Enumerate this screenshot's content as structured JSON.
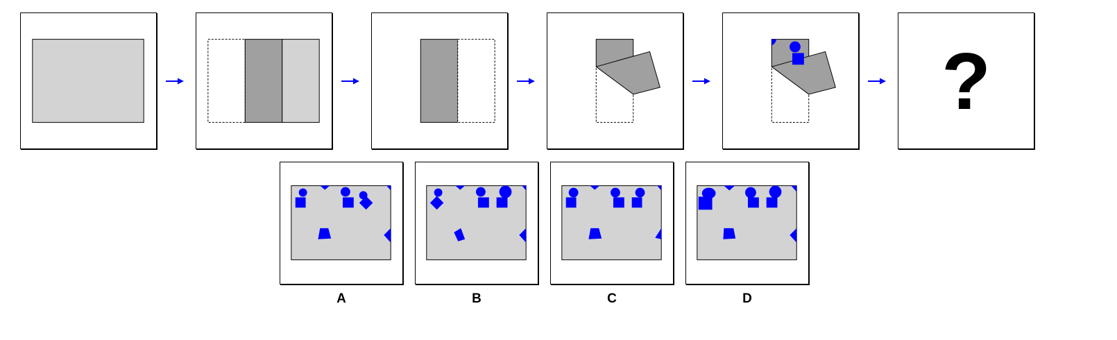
{
  "puzzle": {
    "question_mark": "?",
    "options": [
      {
        "label": "A"
      },
      {
        "label": "B"
      },
      {
        "label": "C"
      },
      {
        "label": "D"
      }
    ]
  },
  "colors": {
    "paper": "#d3d3d3",
    "folded": "#a0a0a0",
    "punch": "#0000ff",
    "arrow": "#0000ff",
    "outline": "#000000"
  },
  "icons": {
    "arrow": "right-arrow-icon",
    "punch": "hole-punch-icon"
  }
}
